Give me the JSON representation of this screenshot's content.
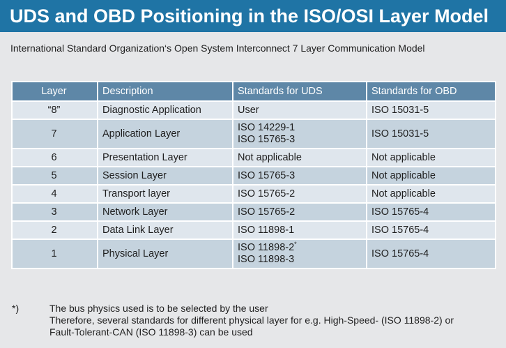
{
  "title": "UDS and OBD Positioning in the ISO/OSI Layer Model",
  "subtitle": "International Standard Organization‘s Open System Interconnect 7 Layer Communication Model",
  "table": {
    "headers": [
      "Layer",
      "Description",
      "Standards for UDS",
      "Standards for OBD"
    ],
    "rows": [
      {
        "layer": "“8”",
        "description": "Diagnostic Application",
        "uds": [
          "User"
        ],
        "obd": "ISO 15031-5"
      },
      {
        "layer": "7",
        "description": "Application Layer",
        "uds": [
          "ISO 14229-1",
          "ISO 15765-3"
        ],
        "obd": "ISO 15031-5"
      },
      {
        "layer": "6",
        "description": "Presentation Layer",
        "uds": [
          "Not applicable"
        ],
        "obd": "Not applicable"
      },
      {
        "layer": "5",
        "description": "Session Layer",
        "uds": [
          "ISO 15765-3"
        ],
        "obd": "Not applicable"
      },
      {
        "layer": "4",
        "description": "Transport layer",
        "uds": [
          "ISO 15765-2"
        ],
        "obd": "Not applicable"
      },
      {
        "layer": "3",
        "description": "Network Layer",
        "uds": [
          "ISO 15765-2"
        ],
        "obd": "ISO 15765-4"
      },
      {
        "layer": "2",
        "description": "Data Link Layer",
        "uds": [
          "ISO 11898-1"
        ],
        "obd": "ISO 15765-4"
      },
      {
        "layer": "1",
        "description": "Physical Layer",
        "uds": [
          "ISO 11898-2",
          "ISO 11898-3"
        ],
        "uds_marker": "*",
        "obd": "ISO 15765-4"
      }
    ]
  },
  "footnote": {
    "marker": "*)",
    "lines": [
      "The bus physics used is to be selected by the user",
      "Therefore, several standards for different physical layer for e.g. High-Speed- (ISO 11898-2) or",
      "Fault-Tolerant-CAN (ISO 11898-3) can be used"
    ]
  },
  "colors": {
    "title_bar": "#1f74a5",
    "header_row": "#5e87a7",
    "row_light": "#dfe6ed",
    "row_dark": "#c5d3de",
    "background": "#e6e7e9"
  }
}
